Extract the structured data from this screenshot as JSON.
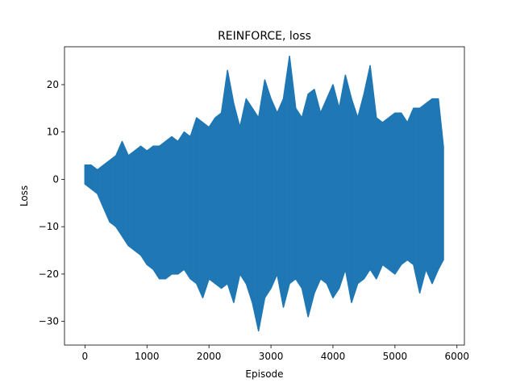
{
  "chart_data": {
    "type": "line",
    "title": "REINFORCE, loss",
    "xlabel": "Episode",
    "ylabel": "Loss",
    "xlim": [
      -330,
      6120
    ],
    "ylim": [
      -35,
      28
    ],
    "xticks": [
      0,
      1000,
      2000,
      3000,
      4000,
      5000,
      6000
    ],
    "yticks": [
      -30,
      -20,
      -10,
      0,
      10,
      20
    ],
    "grid": false,
    "legend": "none",
    "series": [
      {
        "color": "#1f77b4",
        "x": [
          0,
          100,
          200,
          300,
          400,
          500,
          600,
          700,
          800,
          900,
          1000,
          1100,
          1200,
          1300,
          1400,
          1500,
          1600,
          1700,
          1800,
          1900,
          2000,
          2100,
          2200,
          2300,
          2400,
          2500,
          2600,
          2700,
          2800,
          2900,
          3000,
          3100,
          3200,
          3300,
          3400,
          3500,
          3600,
          3700,
          3800,
          3900,
          4000,
          4100,
          4200,
          4300,
          4400,
          4500,
          4600,
          4700,
          4800,
          4900,
          5000,
          5100,
          5200,
          5300,
          5400,
          5500,
          5600,
          5700,
          5780
        ],
        "max": [
          3,
          3,
          2,
          3,
          4,
          5,
          8,
          5,
          6,
          7,
          6,
          7,
          7,
          8,
          9,
          8,
          10,
          9,
          13,
          12,
          11,
          13,
          14,
          23,
          16,
          11,
          17,
          15,
          13,
          21,
          17,
          14,
          17,
          26,
          15,
          13,
          18,
          19,
          14,
          17,
          20,
          15,
          22,
          17,
          13,
          18,
          24,
          13,
          12,
          13,
          14,
          14,
          12,
          15,
          15,
          16,
          17,
          17,
          7
        ],
        "min": [
          -1,
          -2,
          -3,
          -6,
          -9,
          -10,
          -12,
          -14,
          -15,
          -16,
          -18,
          -19,
          -21,
          -21,
          -20,
          -20,
          -19,
          -21,
          -22,
          -25,
          -21,
          -22,
          -23,
          -22,
          -26,
          -20,
          -22,
          -26,
          -32,
          -25,
          -23,
          -20,
          -27,
          -22,
          -21,
          -23,
          -29,
          -24,
          -21,
          -22,
          -25,
          -23,
          -19,
          -26,
          -22,
          -21,
          -19,
          -21,
          -18,
          -19,
          -20,
          -18,
          -17,
          -18,
          -24,
          -19,
          -22,
          -19,
          -17
        ]
      }
    ]
  }
}
